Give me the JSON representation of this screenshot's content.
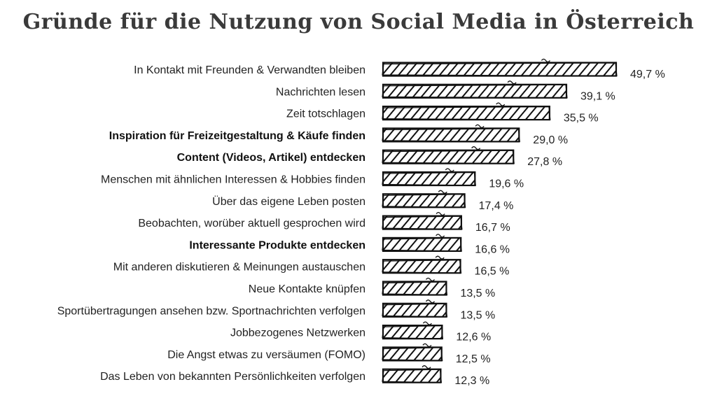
{
  "chart_data": {
    "type": "bar",
    "orientation": "horizontal",
    "title": "Gründe für die Nutzung von Social Media in Österreich",
    "categories": [
      "In Kontakt mit Freunden & Verwandten bleiben",
      "Nachrichten lesen",
      "Zeit totschlagen",
      "Inspiration für Freizeitgestaltung & Käufe finden",
      "Content (Videos, Artikel) entdecken",
      "Menschen mit ähnlichen Interessen & Hobbies finden",
      "Über das eigene Leben posten",
      "Beobachten, worüber aktuell gesprochen wird",
      "Interessante Produkte entdecken",
      "Mit anderen diskutieren & Meinungen austauschen",
      "Neue Kontakte knüpfen",
      "Sportübertragungen ansehen bzw. Sportnachrichten verfolgen",
      "Jobbezogenes Netzwerken",
      "Die Angst etwas zu versäumen (FOMO)",
      "Das Leben von bekannten Persönlichkeiten verfolgen"
    ],
    "values": [
      49.7,
      39.1,
      35.5,
      29.0,
      27.8,
      19.6,
      17.4,
      16.7,
      16.6,
      16.5,
      13.5,
      13.5,
      12.6,
      12.5,
      12.3
    ],
    "value_labels": [
      "49,7 %",
      "39,1 %",
      "35,5 %",
      "29,0 %",
      "27,8 %",
      "19,6 %",
      "17,4 %",
      "16,7 %",
      "16,6 %",
      "16,5 %",
      "13,5 %",
      "13,5 %",
      "12,6 %",
      "12,5 %",
      "12,3 %"
    ],
    "highlighted": [
      false,
      false,
      false,
      true,
      true,
      false,
      false,
      false,
      true,
      false,
      false,
      false,
      false,
      false,
      false
    ],
    "xlim": [
      0,
      50
    ],
    "grid": false,
    "bar_color": "#111111",
    "bar_style": "hand-drawn hatched"
  }
}
